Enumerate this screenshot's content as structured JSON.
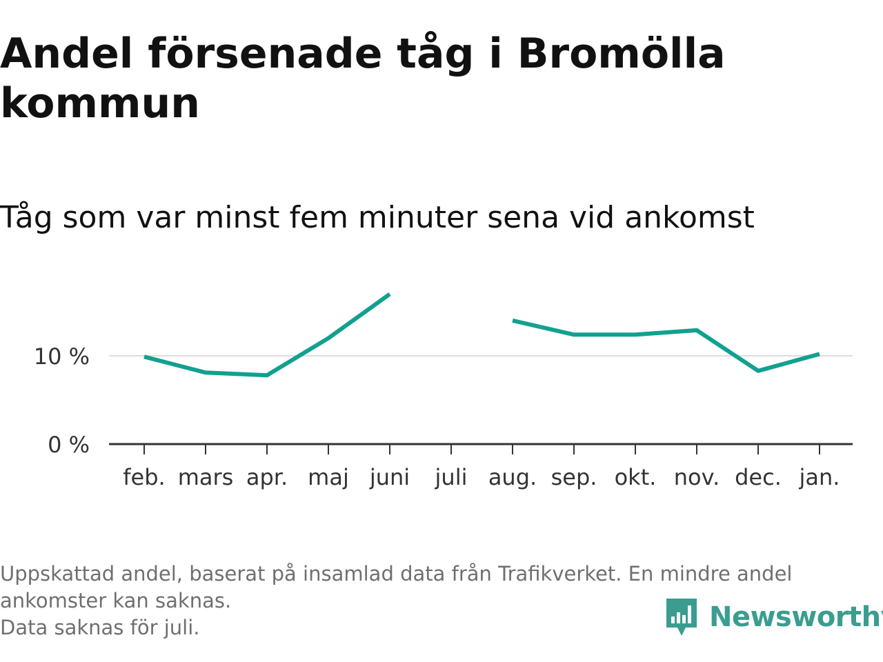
{
  "chart_data": {
    "type": "line",
    "title": "Andel försenade tåg i Bromölla kommun",
    "subtitle": "Tåg som var minst fem minuter sena vid ankomst",
    "categories": [
      "feb.",
      "mars",
      "apr.",
      "maj",
      "juni",
      "juli",
      "aug.",
      "sep.",
      "okt.",
      "nov.",
      "dec.",
      "jan."
    ],
    "series": [
      {
        "values": [
          9.9,
          8.1,
          7.8,
          12.0,
          17.0,
          null,
          14.0,
          12.4,
          12.4,
          12.9,
          8.3,
          10.2
        ],
        "color": "#12a090"
      }
    ],
    "yticks": [
      {
        "value": 0,
        "label": "0 %"
      },
      {
        "value": 10,
        "label": "10 %"
      }
    ],
    "ylim": [
      0,
      20
    ],
    "grid": true,
    "axis_color": "#333333",
    "grid_color": "#dddddd"
  },
  "footnote": {
    "line1": "Uppskattad andel, baserat på insamlad data från Trafikverket. En mindre andel",
    "line2": "ankomster kan saknas.",
    "line3": "Data saknas för juli."
  },
  "logo": {
    "text": "Newsworthy",
    "icon": "bar-chart-speech-bubble-icon",
    "color": "#3a9d8f"
  }
}
